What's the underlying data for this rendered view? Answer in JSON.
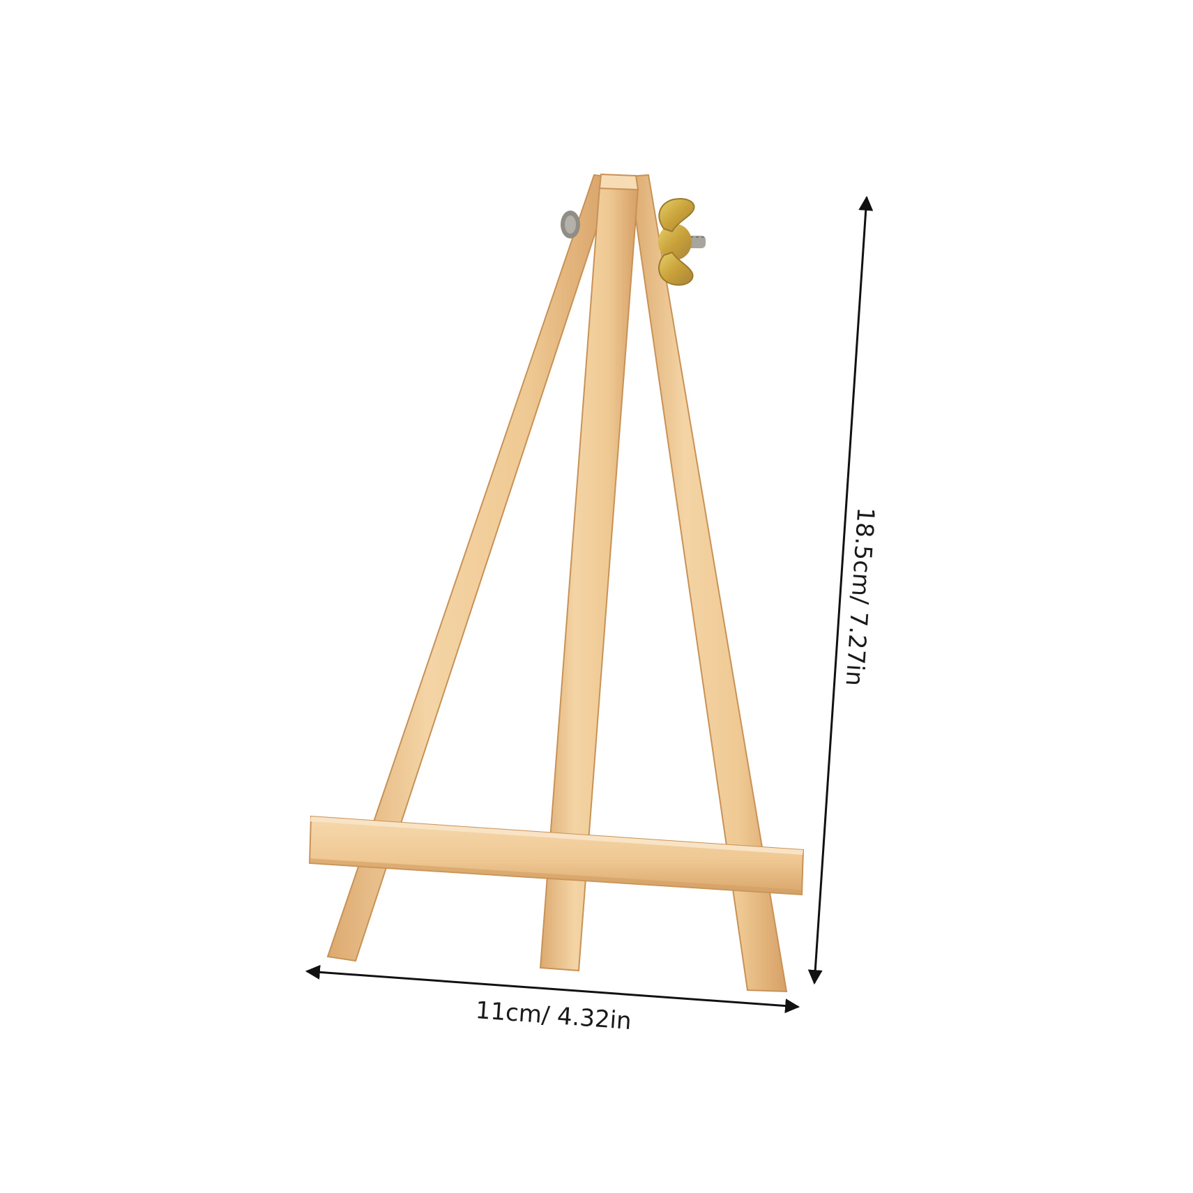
{
  "colors": {
    "background": "#ffffff",
    "wood_light": "#f3d3a6",
    "wood_mid": "#e7bd86",
    "wood_dark": "#cf9a5f",
    "hardware_gold": "#d4b24a",
    "hardware_gray": "#9a9890",
    "dimension_line": "#111111"
  },
  "product": {
    "icon": "wooden-tabletop-easel-icon",
    "hardware_icon": "wing-nut-bolt-icon"
  },
  "dimensions": {
    "width_label": "11cm/ 4.32in",
    "height_label": "18.5cm/ 7.27in"
  }
}
